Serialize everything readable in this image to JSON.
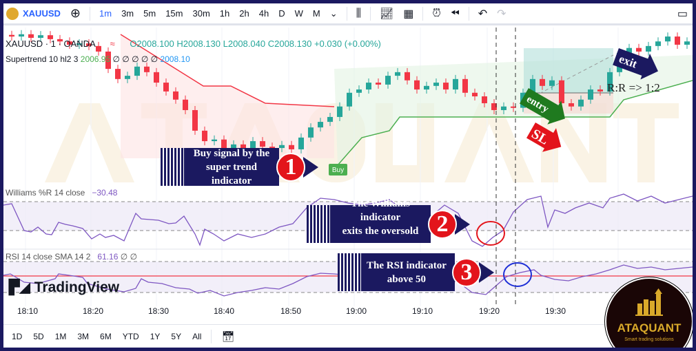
{
  "toolbar": {
    "symbol": "XAUUSD",
    "timeframes": [
      "1m",
      "3m",
      "5m",
      "15m",
      "30m",
      "1h",
      "2h",
      "4h",
      "D",
      "W",
      "M"
    ],
    "active_timeframe": "1m"
  },
  "legend": {
    "title": "XAUUSD · 1 · OANDA",
    "open": "O2008.100",
    "high": "H2008.130",
    "low": "L2008.040",
    "close": "C2008.130",
    "change": "+0.030 (+0.00%)",
    "supertrend_label": "Supertrend 10 hl2 3",
    "supertrend_value": "2006.95",
    "supertrend_zeros": "∅ ∅ ∅ ∅ ∅",
    "supertrend_value2": "2008.10",
    "williams_label": "Williams %R 14 close",
    "williams_value": "−30.48",
    "rsi_label": "RSI 14 close SMA 14 2",
    "rsi_value": "61.16",
    "rsi_zeros": "∅ ∅"
  },
  "chart_data": {
    "type": "candlestick",
    "closes": [
      2008.83,
      2008.9,
      2008.79,
      2008.87,
      2008.75,
      2008.68,
      2008.58,
      2008.62,
      2008.54,
      2008.37,
      2007.84,
      2007.53,
      2007.63,
      2007.91,
      2007.74,
      2007.42,
      2007.15,
      2006.9,
      2006.58,
      2005.95,
      2005.63,
      2005.68,
      2005.42,
      2005.53,
      2005.38,
      2005.63,
      2005.46,
      2005.42,
      2005.51,
      2005.38,
      2005.74,
      2006.05,
      2006.22,
      2006.37,
      2006.69,
      2007.11,
      2007.21,
      2007.42,
      2007.36,
      2007.63,
      2007.74,
      2007.49,
      2007.21,
      2007.32,
      2007.42,
      2007.21,
      2007.53,
      2007.11,
      2007.0,
      2006.79,
      2006.58,
      2006.69,
      2006.65,
      2007.11,
      2007.53,
      2007.32,
      2007.49,
      2006.79,
      2006.69,
      2006.9,
      2007.21,
      2007.15,
      2007.74,
      2008.33,
      2008.48,
      2008.37,
      2008.54,
      2008.68,
      2008.83,
      2008.58,
      2008.68
    ],
    "colors": {
      "up": "#26a69a",
      "down": "#f23645",
      "supertrend_up": "#4caf50",
      "supertrend_down": "#f23645",
      "oscillator": "#7e57c2"
    }
  },
  "signal": {
    "buy": "Buy"
  },
  "time_axis": [
    "18:10",
    "18:20",
    "18:30",
    "18:40",
    "18:50",
    "19:00",
    "19:10",
    "19:20",
    "19:30"
  ],
  "ranges": [
    "1D",
    "5D",
    "1M",
    "3M",
    "6M",
    "YTD",
    "1Y",
    "5Y",
    "All"
  ],
  "annotations": {
    "c1": {
      "line1": "Buy signal by the",
      "line2": "super trend indicator",
      "num": "1"
    },
    "c2": {
      "line1": "The Williams indicator",
      "line2": "exits the oversold area",
      "num": "2"
    },
    "c3": {
      "line1": "The RSI indicator",
      "line2": "above 50",
      "num": "3"
    },
    "entry": "entry",
    "exit": "exit",
    "sl": "SL",
    "rr": "R:R => 1:2"
  },
  "watermark": "ATAQUANT",
  "tv_logo": "TradingView",
  "badge": {
    "name": "ATAQUANT",
    "tagline": "Smart trading solutions"
  }
}
